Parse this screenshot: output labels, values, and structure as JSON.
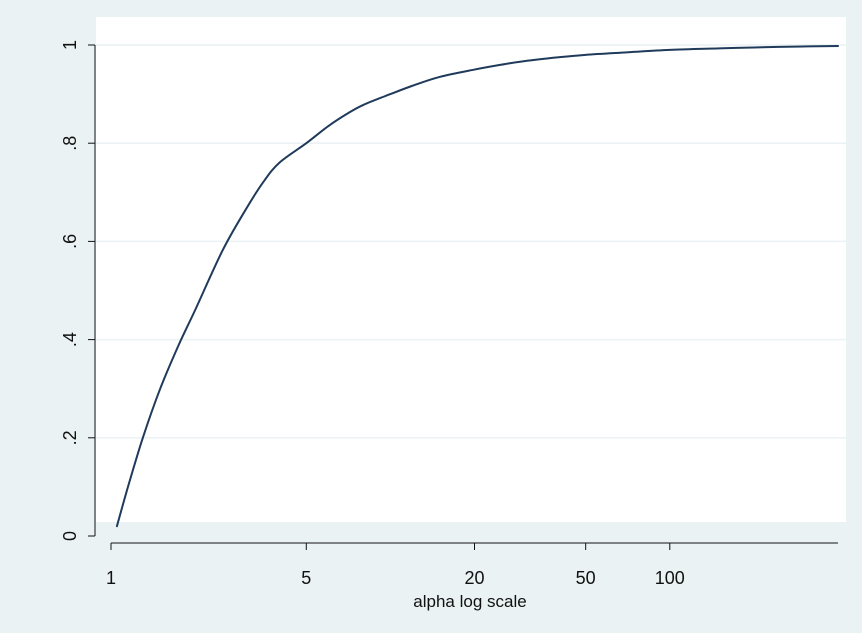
{
  "chart_data": {
    "type": "line",
    "title": "",
    "xlabel": "alpha log scale",
    "ylabel": "",
    "x_scale": "log",
    "xlim": [
      1,
      400
    ],
    "ylim": [
      0,
      1
    ],
    "x_ticks": [
      1,
      5,
      20,
      50,
      100
    ],
    "x_tick_labels": [
      "1",
      "5",
      "20",
      "50",
      "100"
    ],
    "y_ticks": [
      0,
      0.2,
      0.4,
      0.6,
      0.8,
      1
    ],
    "y_tick_labels": [
      "0",
      ".2",
      ".4",
      ".6",
      ".8",
      "1"
    ],
    "grid": "horizontal",
    "legend": "none",
    "series": [
      {
        "color": "#1f3a5a",
        "x": [
          1.05,
          1.15,
          1.3,
          1.5,
          1.75,
          2,
          2.5,
          3,
          3.5,
          4,
          5,
          6,
          7,
          8,
          10,
          12,
          15,
          20,
          25,
          30,
          40,
          50,
          70,
          100,
          150,
          200,
          300,
          400
        ],
        "y": [
          0.02,
          0.1,
          0.2,
          0.3,
          0.39,
          0.46,
          0.58,
          0.66,
          0.72,
          0.76,
          0.8,
          0.835,
          0.86,
          0.878,
          0.9,
          0.917,
          0.935,
          0.95,
          0.96,
          0.967,
          0.975,
          0.98,
          0.985,
          0.99,
          0.993,
          0.995,
          0.997,
          0.998
        ]
      }
    ]
  },
  "colors": {
    "outer_background": "#eaf2f3",
    "plot_background": "#ffffff",
    "grid": "#eaf2f3",
    "axis": "#111111",
    "line": "#1f3a5a"
  }
}
